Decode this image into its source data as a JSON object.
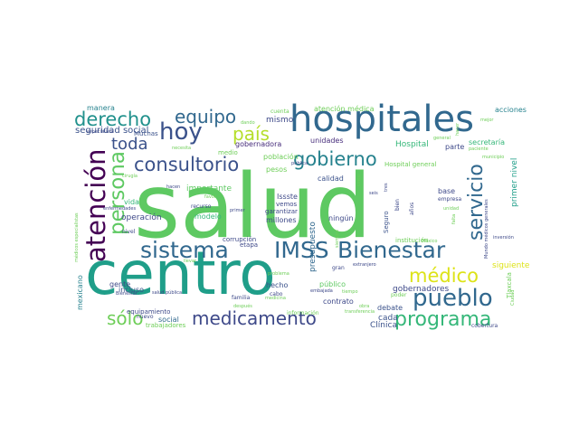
{
  "word_cloud": {
    "words": [
      {
        "text": "salud",
        "color": "#5ec962"
      },
      {
        "text": "centro",
        "color": "#1f9e89"
      },
      {
        "text": "hospitales",
        "color": "#31688e"
      },
      {
        "text": "sistema",
        "color": "#31688e"
      },
      {
        "text": "IMSS",
        "color": "#31688e"
      },
      {
        "text": "Bienestar",
        "color": "#31688e"
      },
      {
        "text": "atención",
        "color": "#440154"
      },
      {
        "text": "persona",
        "color": "#5ec962"
      },
      {
        "text": "consultorio",
        "color": "#3b528b"
      },
      {
        "text": "hoy",
        "color": "#3b528b"
      },
      {
        "text": "país",
        "color": "#b5de2b"
      },
      {
        "text": "equipo",
        "color": "#31688e"
      },
      {
        "text": "derecho",
        "color": "#21918c"
      },
      {
        "text": "gobierno",
        "color": "#26828e"
      },
      {
        "text": "servicio",
        "color": "#31688e"
      },
      {
        "text": "pueblo",
        "color": "#31688e"
      },
      {
        "text": "médico",
        "color": "#dde318"
      },
      {
        "text": "programa",
        "color": "#35b779"
      },
      {
        "text": "medicamento",
        "color": "#3e4989"
      },
      {
        "text": "sólo",
        "color": "#6ece58"
      },
      {
        "text": "toda",
        "color": "#3b528b"
      },
      {
        "text": "seguridad social",
        "color": "#3b528b"
      },
      {
        "text": "operación",
        "color": "#3e4989"
      },
      {
        "text": "mismo",
        "color": "#3e4989"
      },
      {
        "text": "unidades",
        "color": "#472d7b"
      },
      {
        "text": "Hospital",
        "color": "#35b779"
      },
      {
        "text": "atención médica",
        "color": "#6ece58"
      },
      {
        "text": "gobernadora",
        "color": "#472d7b"
      },
      {
        "text": "población",
        "color": "#6ece58"
      },
      {
        "text": "importante",
        "color": "#5ec962"
      },
      {
        "text": "modelo",
        "color": "#35b779"
      },
      {
        "text": "presupuesto",
        "color": "#31688e"
      },
      {
        "text": "primer nivel",
        "color": "#1f9e89"
      },
      {
        "text": "secretaría",
        "color": "#35b779"
      },
      {
        "text": "gobernadores",
        "color": "#3e4989"
      },
      {
        "text": "siguiente",
        "color": "#dde318"
      },
      {
        "text": "Clínica",
        "color": "#3b528b"
      },
      {
        "text": "público",
        "color": "#5ec962"
      },
      {
        "text": "contrato",
        "color": "#3e4989"
      },
      {
        "text": "cada",
        "color": "#3b528b"
      },
      {
        "text": "debate",
        "color": "#3b528b"
      },
      {
        "text": "social",
        "color": "#31688e"
      },
      {
        "text": "hecho",
        "color": "#3b528b"
      },
      {
        "text": "millones",
        "color": "#3e4989"
      },
      {
        "text": "garantizar",
        "color": "#3e4989"
      },
      {
        "text": "ningún",
        "color": "#3e4989"
      },
      {
        "text": "calidad",
        "color": "#3b528b"
      },
      {
        "text": "Issste",
        "color": "#3e4989"
      },
      {
        "text": "vemos",
        "color": "#3e4989"
      },
      {
        "text": "pesos",
        "color": "#6ece58"
      },
      {
        "text": "base",
        "color": "#3e4989"
      },
      {
        "text": "empresa",
        "color": "#3e4989"
      },
      {
        "text": "mexicano",
        "color": "#26828e"
      },
      {
        "text": "manera",
        "color": "#26828e"
      },
      {
        "text": "acciones",
        "color": "#26828e"
      },
      {
        "text": "parte",
        "color": "#3e4989"
      },
      {
        "text": "Hospital general",
        "color": "#6ece58"
      },
      {
        "text": "cuenta",
        "color": "#6ece58"
      },
      {
        "text": "paciente",
        "color": "#6ece58"
      },
      {
        "text": "Muchas",
        "color": "#3b528b"
      },
      {
        "text": "especialista",
        "color": "#3e4989"
      },
      {
        "text": "enfermedades",
        "color": "#3e4989"
      },
      {
        "text": "vida",
        "color": "#35b779"
      },
      {
        "text": "medio",
        "color": "#6ece58"
      },
      {
        "text": "pública",
        "color": "#3e4989"
      },
      {
        "text": "recurso",
        "color": "#3e4989"
      },
      {
        "text": "primer",
        "color": "#3e4989"
      },
      {
        "text": "corrupción",
        "color": "#3e4989"
      },
      {
        "text": "etapa",
        "color": "#3e4989"
      },
      {
        "text": "incluso",
        "color": "#3b528b"
      },
      {
        "text": "gente",
        "color": "#3e4989"
      },
      {
        "text": "equipamiento",
        "color": "#3e4989"
      },
      {
        "text": "nuevo",
        "color": "#3e4989"
      },
      {
        "text": "salud pública",
        "color": "#3e4989"
      },
      {
        "text": "familia",
        "color": "#3e4989"
      },
      {
        "text": "cabo",
        "color": "#3e4989"
      },
      {
        "text": "embajada",
        "color": "#3e4989"
      },
      {
        "text": "información",
        "color": "#6ece58"
      },
      {
        "text": "transferencia",
        "color": "#6ece58"
      },
      {
        "text": "Seguro",
        "color": "#3b528b"
      },
      {
        "text": "institución",
        "color": "#6ece58"
      },
      {
        "text": "Tlaxcala",
        "color": "#6ece58"
      },
      {
        "text": "cobertura",
        "color": "#3e4989"
      },
      {
        "text": "trabajadores",
        "color": "#6ece58"
      },
      {
        "text": "médicos especialistas",
        "color": "#6ece58"
      },
      {
        "text": "hacen",
        "color": "#3e4989"
      },
      {
        "text": "necesita",
        "color": "#6ece58"
      },
      {
        "text": "cirugía",
        "color": "#6ece58"
      },
      {
        "text": "favor",
        "color": "#6ece58"
      },
      {
        "text": "nivel",
        "color": "#3e4989"
      },
      {
        "text": "problema",
        "color": "#6ece58"
      },
      {
        "text": "gran",
        "color": "#3e4989"
      },
      {
        "text": "extranjero",
        "color": "#3e4989"
      },
      {
        "text": "poder",
        "color": "#6ece58"
      },
      {
        "text": "años",
        "color": "#3e4989"
      },
      {
        "text": "bien",
        "color": "#3e4989"
      },
      {
        "text": "seis",
        "color": "#3e4989"
      },
      {
        "text": "tres",
        "color": "#3e4989"
      },
      {
        "text": "unidad",
        "color": "#6ece58"
      },
      {
        "text": "falta",
        "color": "#6ece58"
      },
      {
        "text": "inversión",
        "color": "#3e4989"
      },
      {
        "text": "Ciudad",
        "color": "#6ece58"
      },
      {
        "text": "mejor",
        "color": "#6ece58"
      },
      {
        "text": "llevar",
        "color": "#6ece58"
      },
      {
        "text": "después",
        "color": "#6ece58"
      },
      {
        "text": "obra",
        "color": "#6ece58"
      },
      {
        "text": "Bienestar",
        "color": "#3e4989"
      },
      {
        "text": "general",
        "color": "#6ece58"
      },
      {
        "text": "dando",
        "color": "#6ece58"
      },
      {
        "text": "medicina",
        "color": "#6ece58"
      },
      {
        "text": "tiempo",
        "color": "#6ece58"
      },
      {
        "text": "cinco",
        "color": "#6ece58"
      },
      {
        "text": "Mundo médicos generales",
        "color": "#3e4989"
      },
      {
        "text": "hacer",
        "color": "#6ece58"
      },
      {
        "text": "municipio",
        "color": "#6ece58"
      },
      {
        "text": "siempre",
        "color": "#6ece58"
      },
      {
        "text": "México",
        "color": "#6ece58"
      }
    ]
  }
}
